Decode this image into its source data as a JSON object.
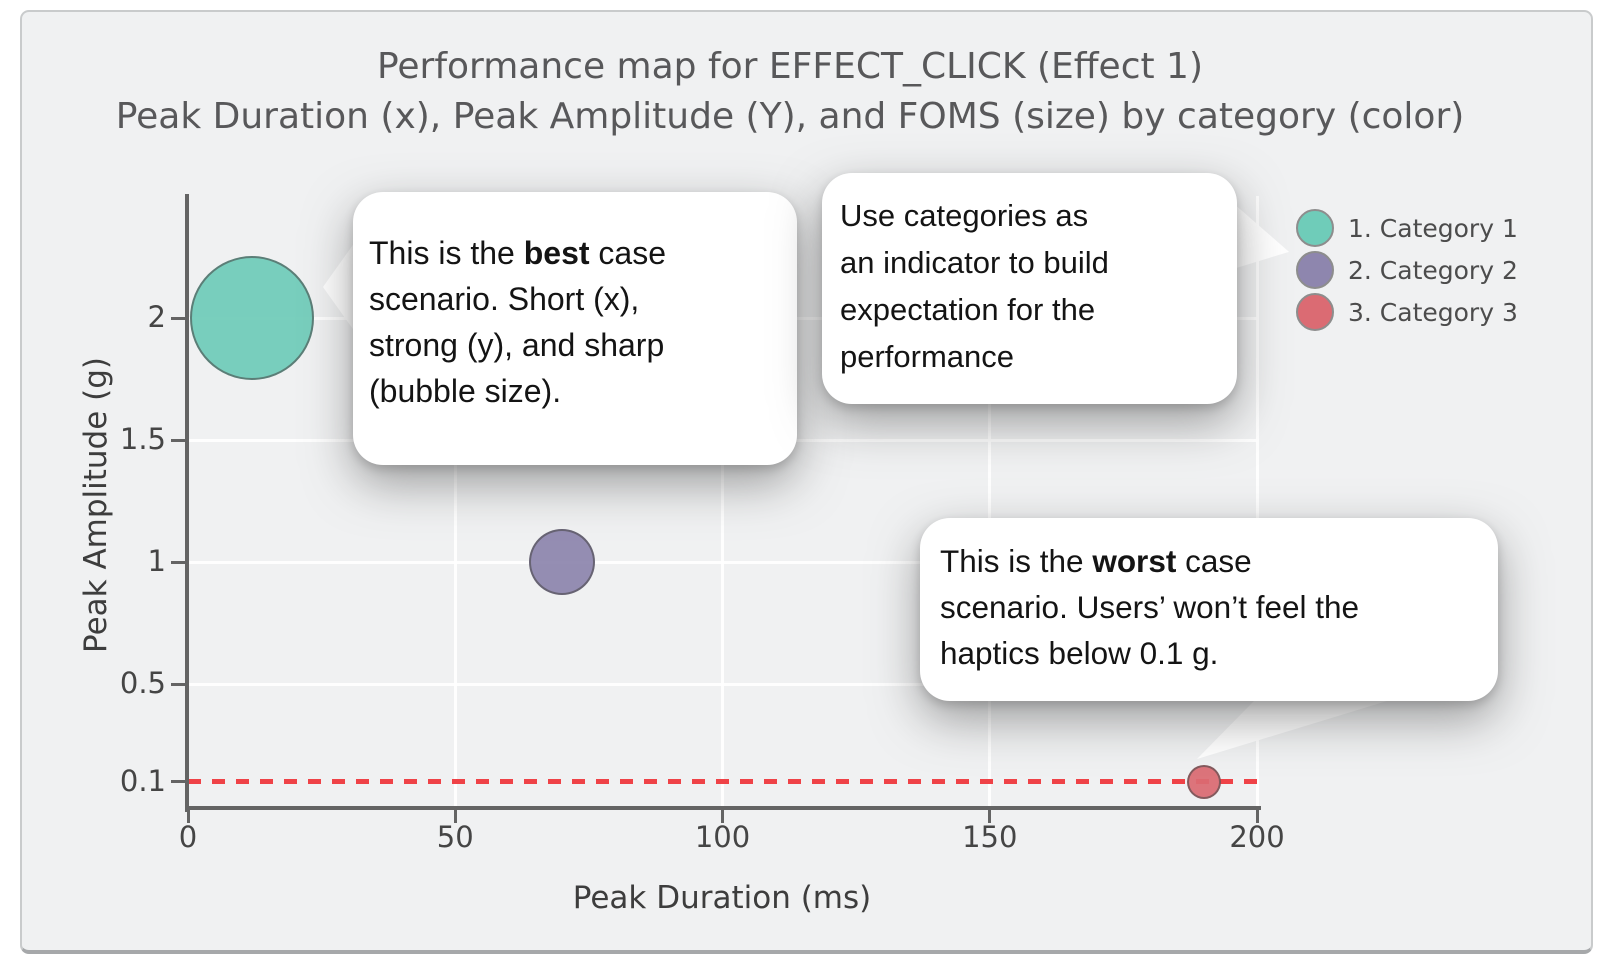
{
  "chart_data": {
    "type": "scatter",
    "subtype": "bubble",
    "title": "Performance map for EFFECT_CLICK (Effect 1)",
    "subtitle": "Peak Duration (x), Peak Amplitude (Y), and FOMS (size) by category (color)",
    "xlabel": "Peak Duration (ms)",
    "ylabel": "Peak Amplitude (g)",
    "x_ticks": [
      0,
      50,
      100,
      150,
      200
    ],
    "y_ticks": [
      0.1,
      0.5,
      1,
      1.5,
      2
    ],
    "xlim": [
      0,
      200
    ],
    "ylim": [
      0,
      2.5
    ],
    "grid": true,
    "legend_position": "top-right",
    "series": [
      {
        "name": "1. Category 1",
        "color": "#6fccb9",
        "points": [
          {
            "x": 12,
            "y": 2.0,
            "radius_px": 62
          }
        ]
      },
      {
        "name": "2. Category 2",
        "color": "#8e86ae",
        "points": [
          {
            "x": 70,
            "y": 1.0,
            "radius_px": 33
          }
        ]
      },
      {
        "name": "3. Category 3",
        "color": "#db6b73",
        "points": [
          {
            "x": 190,
            "y": 0.1,
            "radius_px": 17
          }
        ]
      }
    ],
    "threshold_line": {
      "y": 0.1,
      "style": "dashed",
      "color": "#ef4247"
    }
  },
  "callouts": [
    {
      "id": "best-case",
      "lines": [
        [
          {
            "t": "This is the "
          },
          {
            "t": "best",
            "b": true
          },
          {
            "t": " case"
          }
        ],
        [
          {
            "t": "scenario. Short (x),"
          }
        ],
        [
          {
            "t": "strong (y), and sharp"
          }
        ],
        [
          {
            "t": "(bubble size)."
          }
        ]
      ]
    },
    {
      "id": "categories",
      "lines": [
        [
          {
            "t": "Use categories as"
          }
        ],
        [
          {
            "t": "an indicator to build"
          }
        ],
        [
          {
            "t": "expectation for the"
          }
        ],
        [
          {
            "t": "performance"
          }
        ]
      ]
    },
    {
      "id": "worst-case",
      "lines": [
        [
          {
            "t": "This is the "
          },
          {
            "t": "worst",
            "b": true
          },
          {
            "t": " case"
          }
        ],
        [
          {
            "t": "scenario. Users’ won’t feel the"
          }
        ],
        [
          {
            "t": "haptics below 0.1 g."
          }
        ]
      ]
    }
  ],
  "colors": {
    "panel_bg": "#f0f1f2",
    "panel_border": "#c9cbcc",
    "axis": "#646464",
    "grid": "#ffffff",
    "tick_label": "#454545",
    "title": "#58585a",
    "threshold": "#ef4247"
  }
}
